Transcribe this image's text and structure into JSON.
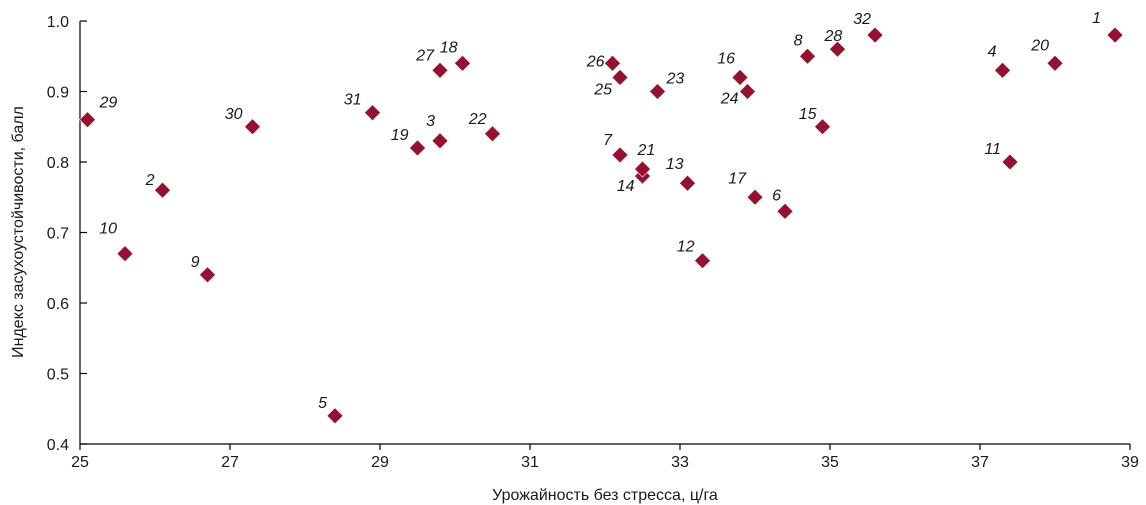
{
  "chart_data": {
    "type": "scatter",
    "xlabel": "Урожайность без стресса, ц/га",
    "ylabel": "Индекс засухоустойчивости, балл",
    "xlim": [
      25,
      39
    ],
    "ylim": [
      0.4,
      1.0
    ],
    "x_ticks": [
      25,
      27,
      29,
      31,
      33,
      35,
      37,
      39
    ],
    "y_ticks": [
      0.4,
      0.5,
      0.6,
      0.7,
      0.8,
      0.9,
      1.0
    ],
    "x_tick_labels": [
      "25",
      "27",
      "29",
      "31",
      "33",
      "35",
      "37",
      "39"
    ],
    "y_tick_labels": [
      "0.4",
      "0.5",
      "0.6",
      "0.7",
      "0.8",
      "0.9",
      "1.0"
    ],
    "marker": "diamond",
    "marker_color": "#9b0f2e",
    "grid": false,
    "points": [
      {
        "label": "1",
        "x": 38.8,
        "y": 0.98
      },
      {
        "label": "2",
        "x": 26.1,
        "y": 0.76
      },
      {
        "label": "3",
        "x": 29.8,
        "y": 0.83
      },
      {
        "label": "4",
        "x": 37.3,
        "y": 0.93
      },
      {
        "label": "5",
        "x": 28.4,
        "y": 0.44
      },
      {
        "label": "6",
        "x": 34.4,
        "y": 0.73
      },
      {
        "label": "7",
        "x": 32.2,
        "y": 0.81
      },
      {
        "label": "8",
        "x": 34.7,
        "y": 0.95
      },
      {
        "label": "9",
        "x": 26.7,
        "y": 0.64
      },
      {
        "label": "10",
        "x": 25.6,
        "y": 0.67
      },
      {
        "label": "11",
        "x": 37.4,
        "y": 0.8
      },
      {
        "label": "12",
        "x": 33.3,
        "y": 0.66
      },
      {
        "label": "13",
        "x": 33.1,
        "y": 0.77
      },
      {
        "label": "14",
        "x": 32.5,
        "y": 0.78
      },
      {
        "label": "15",
        "x": 34.9,
        "y": 0.85
      },
      {
        "label": "16",
        "x": 33.8,
        "y": 0.92
      },
      {
        "label": "17",
        "x": 34.0,
        "y": 0.75
      },
      {
        "label": "18",
        "x": 30.1,
        "y": 0.94
      },
      {
        "label": "19",
        "x": 29.5,
        "y": 0.82
      },
      {
        "label": "20",
        "x": 38.0,
        "y": 0.94
      },
      {
        "label": "21",
        "x": 32.5,
        "y": 0.79
      },
      {
        "label": "22",
        "x": 30.5,
        "y": 0.84
      },
      {
        "label": "23",
        "x": 32.7,
        "y": 0.9
      },
      {
        "label": "24",
        "x": 33.9,
        "y": 0.9
      },
      {
        "label": "25",
        "x": 32.2,
        "y": 0.92
      },
      {
        "label": "26",
        "x": 32.1,
        "y": 0.94
      },
      {
        "label": "27",
        "x": 29.8,
        "y": 0.93
      },
      {
        "label": "28",
        "x": 35.1,
        "y": 0.96
      },
      {
        "label": "29",
        "x": 25.1,
        "y": 0.86
      },
      {
        "label": "30",
        "x": 27.3,
        "y": 0.85
      },
      {
        "label": "31",
        "x": 28.9,
        "y": 0.87
      },
      {
        "label": "32",
        "x": 35.6,
        "y": 0.98
      }
    ]
  }
}
